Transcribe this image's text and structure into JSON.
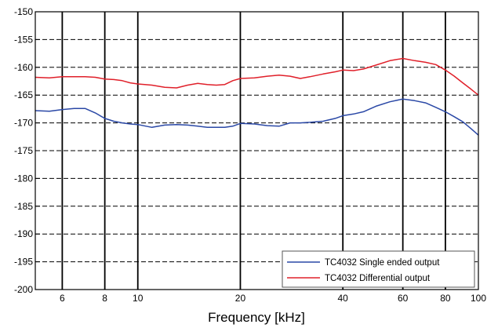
{
  "chart_data": {
    "type": "line",
    "xlabel": "Frequency [kHz]",
    "ylabel": "",
    "x_scale": "log",
    "xlim": [
      5,
      100
    ],
    "ylim": [
      -200,
      -150
    ],
    "grid": true,
    "x_ticks": [
      {
        "value": 6,
        "label": "6"
      },
      {
        "value": 8,
        "label": "8"
      },
      {
        "value": 10,
        "label": "10"
      },
      {
        "value": 20,
        "label": "20"
      },
      {
        "value": 40,
        "label": "40"
      },
      {
        "value": 60,
        "label": "60"
      },
      {
        "value": 80,
        "label": "80"
      },
      {
        "value": 100,
        "label": "100"
      }
    ],
    "y_ticks": [
      -150,
      -155,
      -160,
      -165,
      -170,
      -175,
      -180,
      -185,
      -190,
      -195,
      -200
    ],
    "y_tick_labels": [
      "-150",
      "-155",
      "-160",
      "-165",
      "-170",
      "-175",
      "-180",
      "-185",
      "-190",
      "-195",
      "-200"
    ],
    "legend_position": "bottom-right",
    "series": [
      {
        "name": "TC4032 Single ended output",
        "color": "#2a48a6",
        "x": [
          5,
          5.5,
          6,
          6.5,
          7,
          7.5,
          8,
          8.5,
          9,
          9.5,
          10,
          11,
          12,
          13,
          14,
          15,
          16,
          17,
          18,
          19,
          20,
          22,
          24,
          26,
          28,
          30,
          32,
          35,
          38,
          40,
          43,
          46,
          50,
          55,
          60,
          65,
          70,
          75,
          80,
          85,
          90,
          95,
          100
        ],
        "y": [
          -167.8,
          -167.9,
          -167.6,
          -167.4,
          -167.4,
          -168.2,
          -169.2,
          -169.7,
          -170.0,
          -170.2,
          -170.3,
          -170.8,
          -170.4,
          -170.3,
          -170.4,
          -170.6,
          -170.8,
          -170.8,
          -170.8,
          -170.6,
          -170.1,
          -170.2,
          -170.5,
          -170.6,
          -170.0,
          -170.0,
          -169.9,
          -169.7,
          -169.2,
          -168.7,
          -168.4,
          -168.0,
          -167.0,
          -166.2,
          -165.7,
          -166.0,
          -166.4,
          -167.2,
          -168.0,
          -168.9,
          -169.8,
          -171.0,
          -172.2
        ]
      },
      {
        "name": "TC4032 Differential output",
        "color": "#e0202a",
        "x": [
          5,
          5.5,
          6,
          6.5,
          7,
          7.5,
          8,
          8.5,
          9,
          9.5,
          10,
          11,
          12,
          13,
          14,
          15,
          16,
          17,
          18,
          19,
          20,
          22,
          24,
          26,
          28,
          30,
          32,
          35,
          38,
          40,
          43,
          46,
          50,
          55,
          60,
          65,
          70,
          75,
          80,
          85,
          90,
          95,
          100
        ],
        "y": [
          -161.8,
          -161.9,
          -161.7,
          -161.7,
          -161.7,
          -161.8,
          -162.1,
          -162.2,
          -162.4,
          -162.8,
          -163.0,
          -163.2,
          -163.6,
          -163.7,
          -163.2,
          -162.9,
          -163.1,
          -163.2,
          -163.1,
          -162.4,
          -162.0,
          -161.9,
          -161.6,
          -161.4,
          -161.6,
          -162.0,
          -161.7,
          -161.2,
          -160.8,
          -160.5,
          -160.6,
          -160.3,
          -159.6,
          -158.8,
          -158.4,
          -158.8,
          -159.1,
          -159.5,
          -160.5,
          -161.6,
          -162.8,
          -163.9,
          -165.0
        ]
      }
    ]
  }
}
